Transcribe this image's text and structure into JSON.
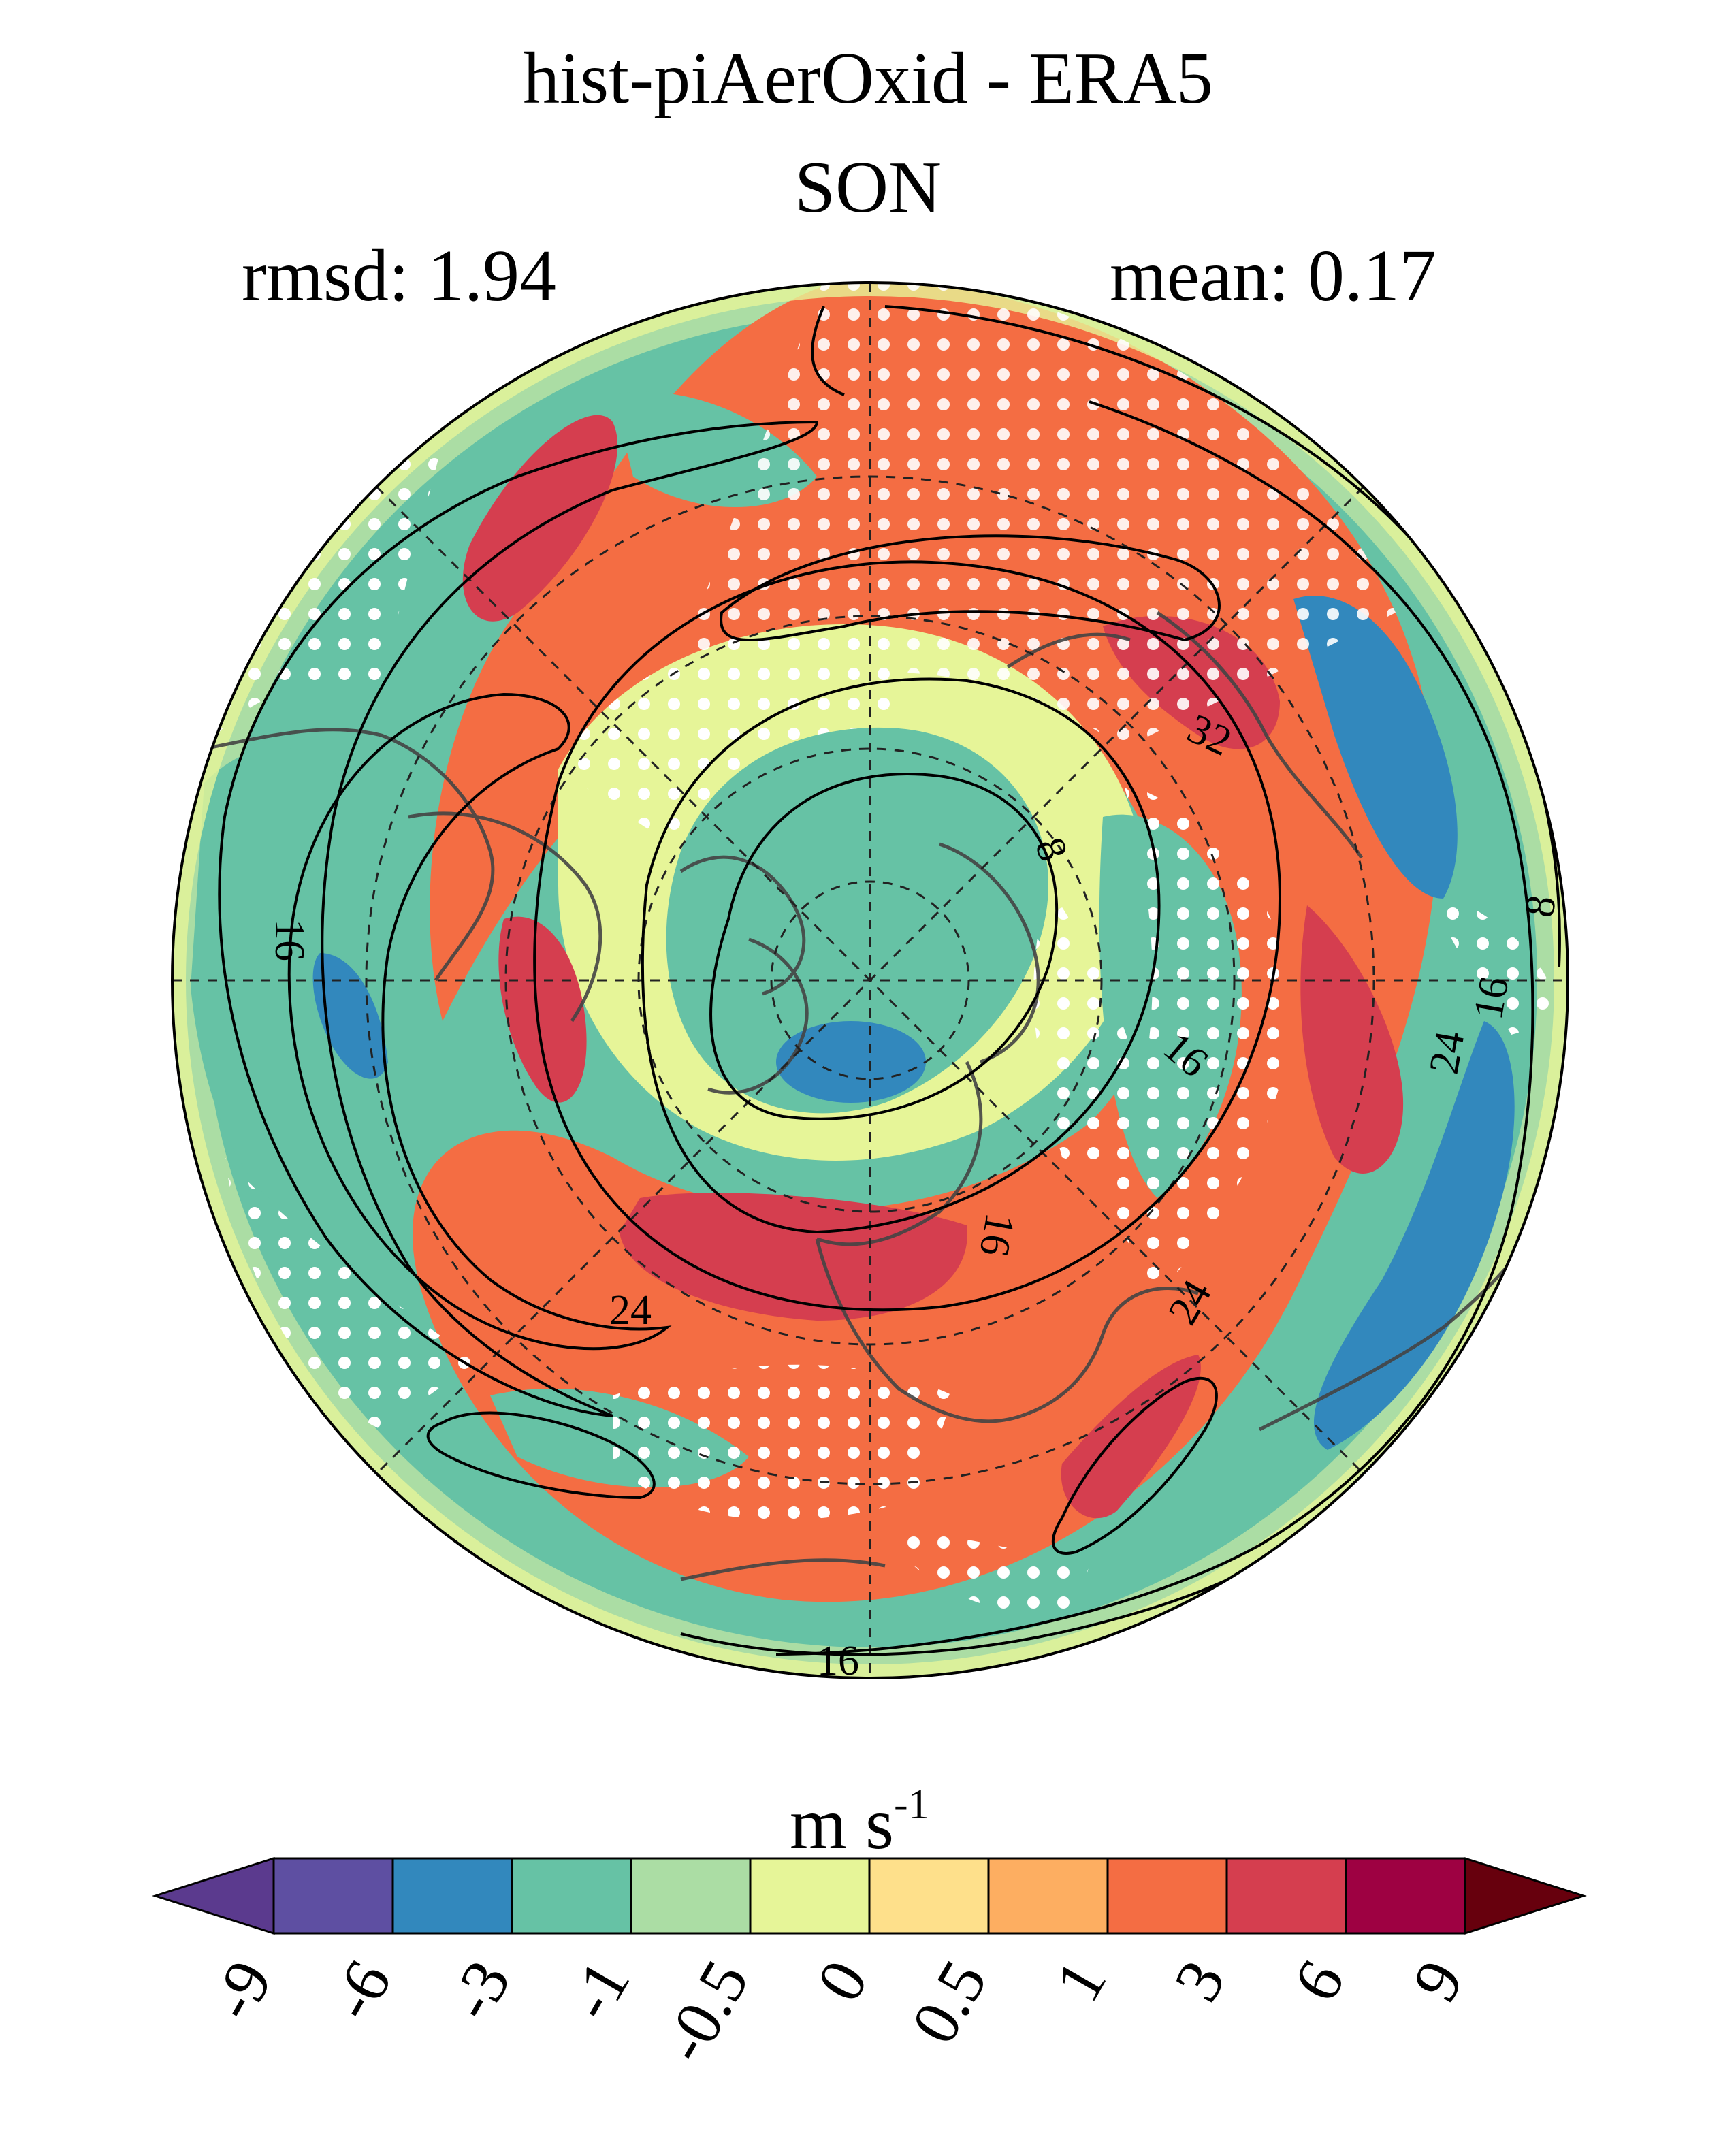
{
  "figure": {
    "title": "hist-piAerOxid - ERA5",
    "season": "SON",
    "rmsd_text": "rmsd: 1.94",
    "mean_text": "mean: 0.17"
  },
  "map": {
    "projection": "north-polar-stereographic",
    "field": "zonal wind difference",
    "stippling": "white dots",
    "contour_labels": [
      "8",
      "16",
      "24",
      "32",
      "16",
      "24",
      "16",
      "8",
      "16",
      "24",
      "16"
    ]
  },
  "colorbar": {
    "unit_base": "m s",
    "unit_exp": "-1",
    "tick_labels": [
      "-9",
      "-6",
      "-3",
      "-1",
      "-0.5",
      "0",
      "0.5",
      "1",
      "3",
      "6",
      "9"
    ],
    "colors": [
      "#6a3d9a",
      "#5e4fa2",
      "#3288bd",
      "#66c2a5",
      "#abdda4",
      "#e6f598",
      "#fee08b",
      "#fdae61",
      "#f46d43",
      "#d53e4f",
      "#9e0142"
    ],
    "under_color": "#5b3a8e",
    "over_color": "#67000d"
  }
}
